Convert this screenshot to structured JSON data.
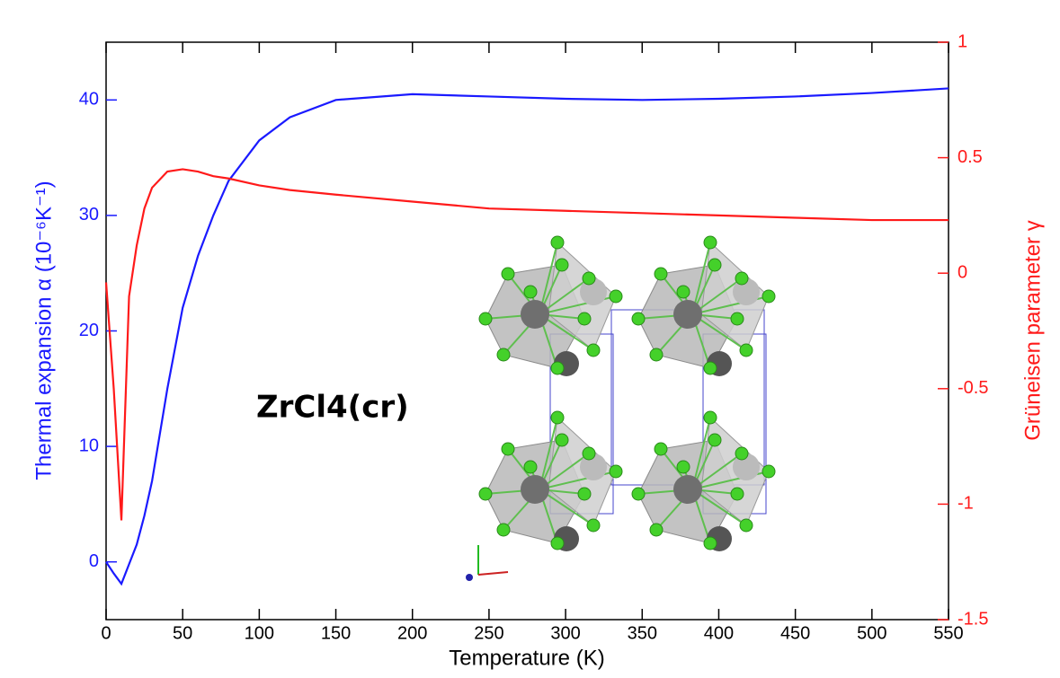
{
  "chart_data": {
    "type": "line",
    "annotation": "ZrCl4(cr)",
    "x_label": "Temperature (K)",
    "y_label": "Thermal expansion α (10⁻⁶K⁻¹)",
    "y2_label": "Grüneisen parameter γ",
    "x": [
      0,
      5,
      10,
      15,
      20,
      25,
      30,
      40,
      50,
      60,
      70,
      80,
      100,
      120,
      150,
      200,
      250,
      300,
      350,
      400,
      450,
      500,
      550
    ],
    "series": [
      {
        "color": "#1a1aff",
        "axis": "y",
        "values": [
          0,
          -1,
          -1.9,
          -0.2,
          1.5,
          4,
          7,
          15,
          22,
          26.5,
          30,
          33,
          36.5,
          38.5,
          40,
          40.5,
          40.3,
          40.1,
          40,
          40.1,
          40.3,
          40.6,
          41
        ]
      },
      {
        "color": "#ff1a1a",
        "axis": "y2",
        "values": [
          -0.04,
          -0.5,
          -1.07,
          -0.1,
          0.12,
          0.28,
          0.37,
          0.44,
          0.45,
          0.44,
          0.42,
          0.41,
          0.38,
          0.36,
          0.34,
          0.31,
          0.28,
          0.27,
          0.26,
          0.25,
          0.24,
          0.23,
          0.23
        ]
      }
    ],
    "xlim": [
      0,
      550
    ],
    "xticks": [
      0,
      50,
      100,
      150,
      200,
      250,
      300,
      350,
      400,
      450,
      500,
      550
    ],
    "ylim": [
      -5,
      45
    ],
    "yticks": [
      0,
      10,
      20,
      30,
      40
    ],
    "y_color": "#1a1aff",
    "y2lim": [
      -1.5,
      1
    ],
    "y2ticks": [
      -1.5,
      -1,
      -0.5,
      0,
      0.5,
      1
    ],
    "y2_color": "#ff1a1a"
  }
}
